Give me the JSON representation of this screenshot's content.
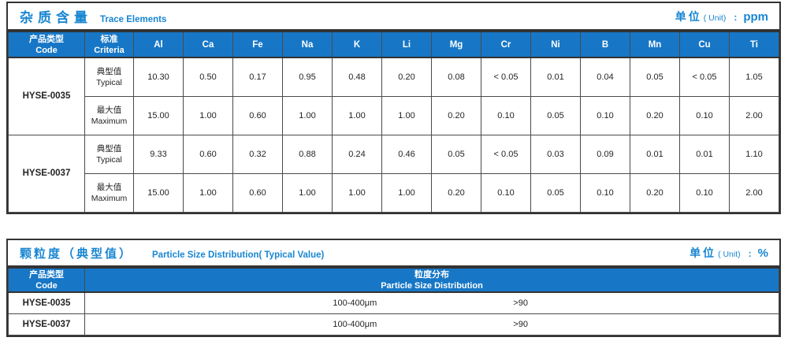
{
  "colors": {
    "accent_fill": "#1777c6",
    "accent_text": "#1886d2",
    "border_dark": "#333333",
    "border_grid": "#4a4a4a"
  },
  "trace": {
    "title_zh": "杂质含量",
    "title_en": "Trace Elements",
    "unit": {
      "zh": "单位",
      "en": "( Unit)",
      "colon": ":",
      "value": "ppm"
    },
    "col_code": {
      "zh": "产品类型",
      "en": "Code"
    },
    "col_criteria": {
      "zh": "标准",
      "en": "Criteria"
    },
    "elements": [
      "Al",
      "Ca",
      "Fe",
      "Na",
      "K",
      "Li",
      "Mg",
      "Cr",
      "Ni",
      "B",
      "Mn",
      "Cu",
      "Ti"
    ],
    "products": [
      {
        "code": "HYSE-0035",
        "rows": [
          {
            "label_zh": "典型值",
            "label_en": "Typical",
            "values": [
              "10.30",
              "0.50",
              "0.17",
              "0.95",
              "0.48",
              "0.20",
              "0.08",
              "< 0.05",
              "0.01",
              "0.04",
              "0.05",
              "< 0.05",
              "1.05"
            ]
          },
          {
            "label_zh": "最大值",
            "label_en": "Maximum",
            "values": [
              "15.00",
              "1.00",
              "0.60",
              "1.00",
              "1.00",
              "1.00",
              "0.20",
              "0.10",
              "0.05",
              "0.10",
              "0.20",
              "0.10",
              "2.00"
            ]
          }
        ]
      },
      {
        "code": "HYSE-0037",
        "rows": [
          {
            "label_zh": "典型值",
            "label_en": "Typical",
            "values": [
              "9.33",
              "0.60",
              "0.32",
              "0.88",
              "0.24",
              "0.46",
              "0.05",
              "< 0.05",
              "0.03",
              "0.09",
              "0.01",
              "0.01",
              "1.10"
            ]
          },
          {
            "label_zh": "最大值",
            "label_en": "Maximum",
            "values": [
              "15.00",
              "1.00",
              "0.60",
              "1.00",
              "1.00",
              "1.00",
              "0.20",
              "0.10",
              "0.05",
              "0.10",
              "0.20",
              "0.10",
              "2.00"
            ]
          }
        ]
      }
    ]
  },
  "particle": {
    "title_zh": "颗粒度（典型值）",
    "title_en": "Particle Size Distribution( Typical Value)",
    "unit": {
      "zh": "单位",
      "en": "( Unit)",
      "colon": ":",
      "value": "%"
    },
    "col_code": {
      "zh": "产品类型",
      "en": "Code"
    },
    "col_dist": {
      "zh": "粒度分布",
      "en": "Particle Size  Distribution"
    },
    "rows": [
      {
        "code": "HYSE-0035",
        "range": "100-400μm",
        "value": ">90"
      },
      {
        "code": "HYSE-0037",
        "range": "100-400μm",
        "value": ">90"
      }
    ]
  }
}
